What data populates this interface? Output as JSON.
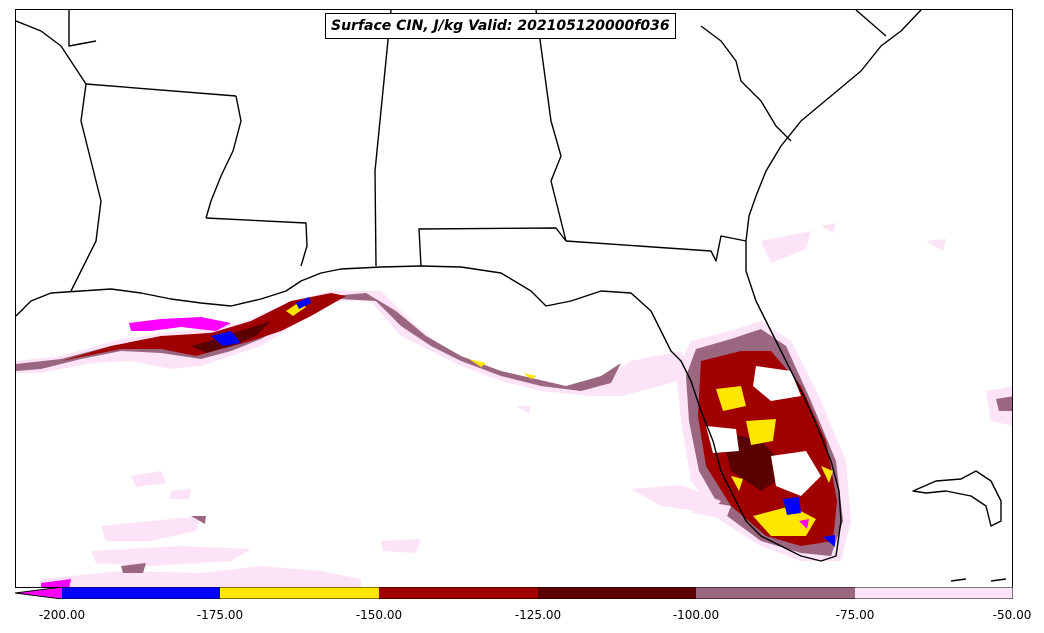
{
  "title": "Surface CIN, J/kg Valid: 202105120000f036",
  "colors": {
    "lt_neg200": "#ff00ff",
    "neg200_neg175": "#0000ff",
    "neg175_neg150": "#ffe600",
    "neg150_neg125": "#a00000",
    "neg125_neg100": "#5a0000",
    "neg100_neg75": "#9a6680",
    "neg75_neg50": "#fde3f7",
    "boundary": "#000000"
  },
  "colorbar": {
    "ticks": [
      "-200.00",
      "-175.00",
      "-150.00",
      "-125.00",
      "-100.00",
      "-75.00",
      "-50.00"
    ]
  }
}
